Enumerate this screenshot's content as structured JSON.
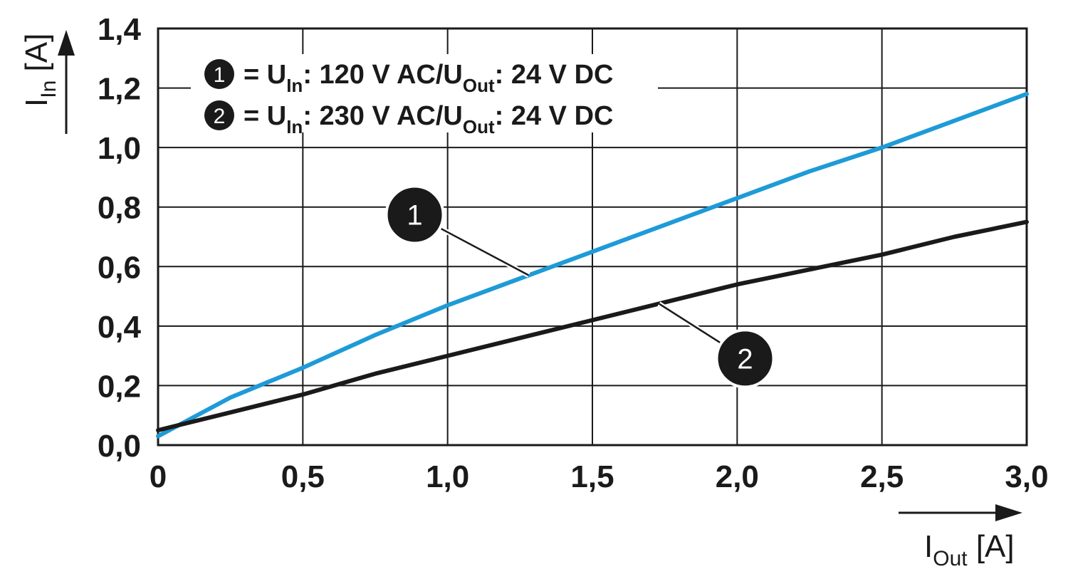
{
  "chart_data": {
    "type": "line",
    "x": [
      0,
      0.25,
      0.5,
      0.75,
      1.0,
      1.25,
      1.5,
      1.75,
      2.0,
      2.25,
      2.5,
      2.75,
      3.0
    ],
    "series": [
      {
        "name": "1",
        "color": "#1e9bd7",
        "values": [
          0.03,
          0.16,
          0.26,
          0.37,
          0.47,
          0.56,
          0.65,
          0.74,
          0.83,
          0.92,
          1.0,
          1.09,
          1.18
        ]
      },
      {
        "name": "2",
        "color": "#1a1a1a",
        "values": [
          0.05,
          0.11,
          0.17,
          0.24,
          0.3,
          0.36,
          0.42,
          0.48,
          0.54,
          0.59,
          0.64,
          0.7,
          0.75
        ]
      }
    ],
    "xlim": [
      0,
      3.0
    ],
    "ylim": [
      0,
      1.4
    ],
    "x_tick_labels": [
      "0",
      "0,5",
      "1,0",
      "1,5",
      "2,0",
      "2,5",
      "3,0"
    ],
    "y_tick_labels": [
      "0,0",
      "0,2",
      "0,4",
      "0,6",
      "0,8",
      "1,0",
      "1,2",
      "1,4"
    ],
    "xlabel": {
      "main": "I",
      "sub": "Out",
      "unit": " [A]"
    },
    "ylabel": {
      "main": "I",
      "sub": "In",
      "unit": " [A]"
    },
    "grid": true,
    "legend": {
      "position": "top-left",
      "entries": [
        {
          "marker": "1",
          "prefix": "= U",
          "sub1": "In",
          "mid": ": 120 V AC/U",
          "sub2": "Out",
          "suffix": ": 24 V DC"
        },
        {
          "marker": "2",
          "prefix": "= U",
          "sub1": "In",
          "mid": ": 230 V AC/U",
          "sub2": "Out",
          "suffix": ": 24 V DC"
        }
      ]
    },
    "annotations": [
      {
        "label": "1",
        "series": 0,
        "at_x": 1.28
      },
      {
        "label": "2",
        "series": 1,
        "at_x": 1.73
      }
    ]
  }
}
